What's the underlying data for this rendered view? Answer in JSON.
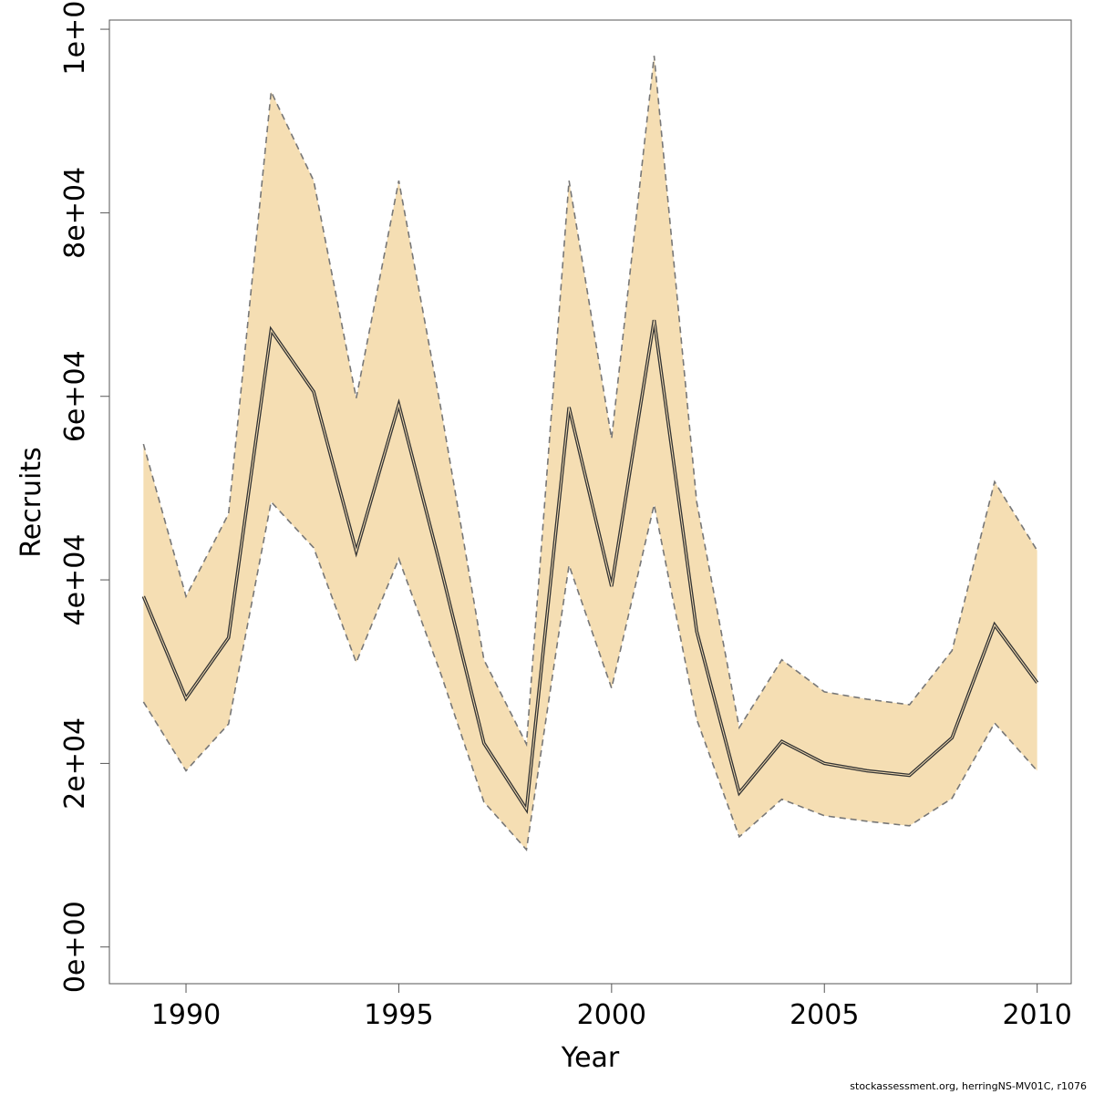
{
  "chart_data": {
    "type": "line",
    "title": "",
    "xlabel": "Year",
    "ylabel": "Recruits",
    "xlim": [
      1988.2,
      2010.8
    ],
    "ylim": [
      -4000,
      101000
    ],
    "x_ticks": [
      1990,
      1995,
      2000,
      2005,
      2010
    ],
    "x_tick_labels": [
      "1990",
      "1995",
      "2000",
      "2005",
      "2010"
    ],
    "y_ticks": [
      0,
      20000,
      40000,
      60000,
      80000,
      100000
    ],
    "y_tick_labels": [
      "0e+00",
      "2e+04",
      "4e+04",
      "6e+04",
      "8e+04",
      "1e+05"
    ],
    "grid": false,
    "band_color": "#f5deb3",
    "line_color": "#333333",
    "bound_color": "#777777",
    "years": [
      1989,
      1990,
      1991,
      1992,
      1993,
      1994,
      1995,
      1996,
      1997,
      1998,
      1999,
      2000,
      2001,
      2002,
      2003,
      2004,
      2005,
      2006,
      2007,
      2008,
      2009,
      2010
    ],
    "series": [
      {
        "role": "estimate",
        "values": [
          38200,
          27100,
          33700,
          67200,
          60500,
          43100,
          59100,
          41100,
          22200,
          15000,
          58800,
          39300,
          68300,
          34400,
          16800,
          22400,
          20000,
          19200,
          18700,
          22800,
          35100,
          28800
        ]
      },
      {
        "role": "upper",
        "values": [
          54800,
          38200,
          47200,
          93200,
          83500,
          59800,
          83500,
          58400,
          31300,
          22100,
          83500,
          55400,
          97100,
          48500,
          23900,
          31300,
          27800,
          27000,
          26400,
          32300,
          50700,
          43200
        ]
      },
      {
        "role": "lower",
        "values": [
          26700,
          19200,
          24300,
          48500,
          43500,
          31000,
          42300,
          29600,
          15800,
          10600,
          41600,
          28200,
          48200,
          24800,
          12000,
          16100,
          14300,
          13700,
          13200,
          16200,
          24400,
          19200
        ]
      }
    ]
  },
  "credit_text": "stockassessment.org, herringNS-MV01C, r1076"
}
